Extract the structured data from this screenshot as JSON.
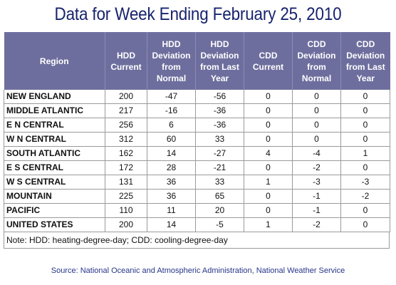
{
  "title": "Data for Week Ending February 25, 2010",
  "headers": [
    "Region",
    "HDD Current",
    "HDD Deviation from Normal",
    "HDD Deviation from Last Year",
    "CDD Current",
    "CDD Deviation from Normal",
    "CDD Deviation from Last Year"
  ],
  "rows": [
    [
      "NEW ENGLAND",
      "200",
      "-47",
      "-56",
      "0",
      "0",
      "0"
    ],
    [
      "MIDDLE ATLANTIC",
      "217",
      "-16",
      "-36",
      "0",
      "0",
      "0"
    ],
    [
      "E N CENTRAL",
      "256",
      "6",
      "-36",
      "0",
      "0",
      "0"
    ],
    [
      "W N CENTRAL",
      "312",
      "60",
      "33",
      "0",
      "0",
      "0"
    ],
    [
      "SOUTH ATLANTIC",
      "162",
      "14",
      "-27",
      "4",
      "-4",
      "1"
    ],
    [
      "E S CENTRAL",
      "172",
      "28",
      "-21",
      "0",
      "-2",
      "0"
    ],
    [
      "W S CENTRAL",
      "131",
      "36",
      "33",
      "1",
      "-3",
      "-3"
    ],
    [
      "MOUNTAIN",
      "225",
      "36",
      "65",
      "0",
      "-1",
      "-2"
    ],
    [
      "PACIFIC",
      "110",
      "11",
      "20",
      "0",
      "-1",
      "0"
    ],
    [
      "UNITED STATES",
      "200",
      "14",
      "-5",
      "1",
      "-2",
      "0"
    ]
  ],
  "note": "Note: HDD: heating-degree-day; CDD: cooling-degree-day",
  "source": "Source:  National Oceanic and Atmospheric Administration, National Weather Service"
}
